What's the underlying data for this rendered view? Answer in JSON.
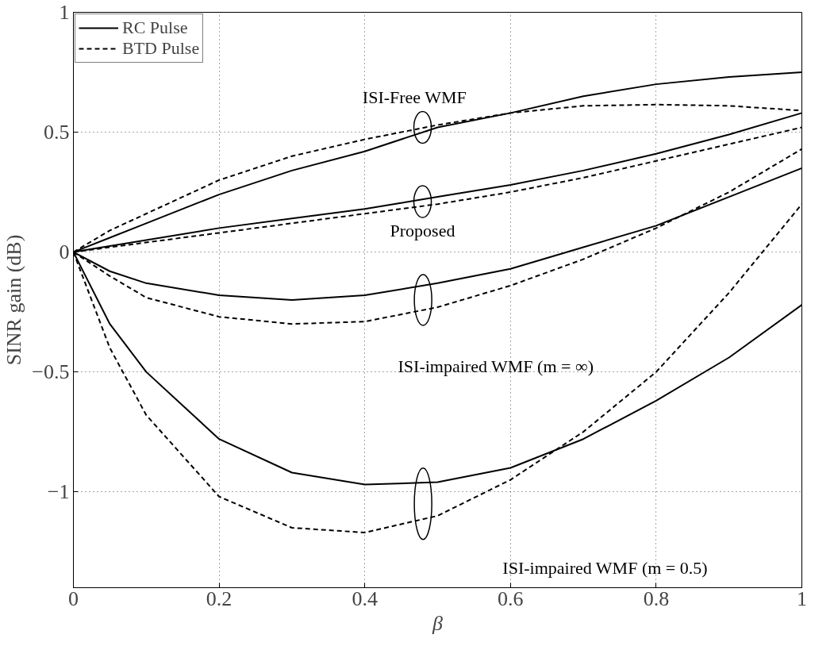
{
  "chart_data": {
    "type": "line",
    "xlabel": "β",
    "ylabel": "SINR gain (dB)",
    "x": [
      0,
      0.05,
      0.1,
      0.2,
      0.3,
      0.4,
      0.5,
      0.6,
      0.7,
      0.8,
      0.9,
      1
    ],
    "series": [
      {
        "name": "RC Pulse",
        "color": "#000000",
        "line_style": "solid",
        "values": [
          0,
          0.06,
          0.12,
          0.24,
          0.34,
          0.42,
          0.52,
          0.58,
          0.65,
          0.7,
          0.73,
          0.75
        ]
      },
      {
        "name": "BTD Pulse",
        "color": "#000000",
        "line_style": "dashed",
        "values": [
          0,
          0.09,
          0.16,
          0.3,
          0.4,
          0.47,
          0.53,
          0.58,
          0.61,
          0.615,
          0.61,
          0.59
        ]
      },
      {
        "color": "#000000",
        "line_style": "solid",
        "values": [
          0,
          0.025,
          0.05,
          0.1,
          0.14,
          0.18,
          0.23,
          0.28,
          0.34,
          0.41,
          0.49,
          0.58
        ]
      },
      {
        "color": "#000000",
        "line_style": "dashed",
        "values": [
          0,
          0.02,
          0.04,
          0.08,
          0.12,
          0.16,
          0.2,
          0.25,
          0.31,
          0.38,
          0.45,
          0.52
        ]
      },
      {
        "color": "#000000",
        "line_style": "solid",
        "values": [
          0,
          -0.08,
          -0.13,
          -0.18,
          -0.2,
          -0.18,
          -0.13,
          -0.07,
          0.02,
          0.11,
          0.23,
          0.35
        ]
      },
      {
        "color": "#000000",
        "line_style": "dashed",
        "values": [
          0,
          -0.1,
          -0.19,
          -0.27,
          -0.3,
          -0.29,
          -0.23,
          -0.14,
          -0.03,
          0.1,
          0.25,
          0.43
        ]
      },
      {
        "color": "#000000",
        "line_style": "solid",
        "values": [
          0,
          -0.3,
          -0.5,
          -0.78,
          -0.92,
          -0.97,
          -0.96,
          -0.9,
          -0.78,
          -0.62,
          -0.44,
          -0.22
        ]
      },
      {
        "color": "#000000",
        "line_style": "dashed",
        "values": [
          0,
          -0.4,
          -0.68,
          -1.02,
          -1.15,
          -1.17,
          -1.1,
          -0.95,
          -0.75,
          -0.5,
          -0.17,
          0.2
        ]
      }
    ],
    "annotations": [
      {
        "text": "ISI-Free WMF",
        "x": 0.5,
        "y": 0.52
      },
      {
        "text": "Proposed",
        "x": 0.5,
        "y": 0.23
      },
      "ISI-impaired WMF (m = ∞)",
      "ISI-impaired WMF (m = 0.5)"
    ],
    "xlim": [
      0,
      1
    ],
    "ylim": [
      -1.4,
      1
    ],
    "xticks": [
      0,
      0.2,
      0.4,
      0.6,
      0.8,
      1
    ],
    "yticks": [
      -1,
      -0.5,
      0,
      0.5,
      1
    ],
    "grid": true,
    "legend": "top left"
  }
}
